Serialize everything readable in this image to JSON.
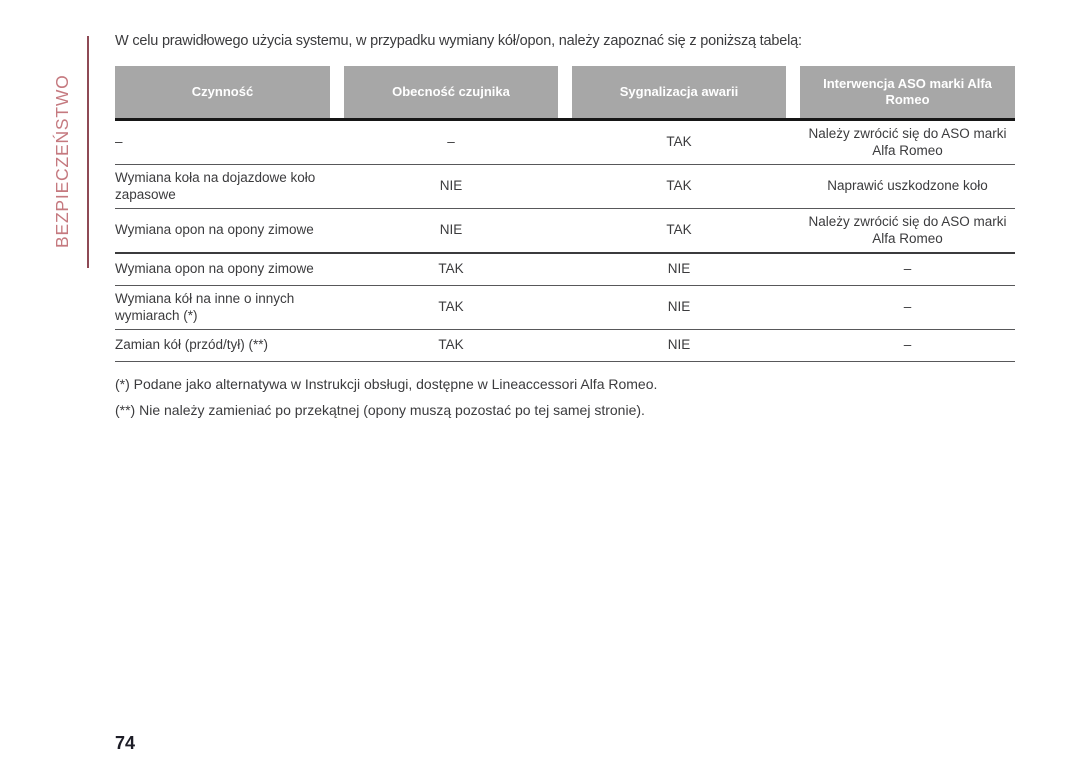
{
  "sidebar": {
    "chapter_label": "BEZPIECZEŃSTWO"
  },
  "intro_text": "W celu prawidłowego użycia systemu, w przypadku wymiany kół/opon, należy zapoznać się z poniższą tabelą:",
  "table": {
    "headers": [
      "Czynność",
      "Obecność czujnika",
      "Sygnalizacja awarii",
      "Interwencja ASO marki Alfa Romeo"
    ],
    "rows": [
      [
        "–",
        "–",
        "TAK",
        "Należy zwrócić się do ASO marki Alfa Romeo"
      ],
      [
        "Wymiana koła na dojazdowe koło zapasowe",
        "NIE",
        "TAK",
        "Naprawić uszkodzone koło"
      ],
      [
        "Wymiana opon na opony zimowe",
        "NIE",
        "TAK",
        "Należy zwrócić się do ASO marki Alfa Romeo"
      ],
      [
        "Wymiana opon na opony zimowe",
        "TAK",
        "NIE",
        "–"
      ],
      [
        "Wymiana kół na inne o innych wymiarach (*)",
        "TAK",
        "NIE",
        "–"
      ],
      [
        "Zamian kół (przód/tył) (**)",
        "TAK",
        "NIE",
        "–"
      ]
    ]
  },
  "footnotes": [
    "(*) Podane jako alternatywa w Instrukcji obsługi, dostępne w Lineaccessori Alfa Romeo.",
    "(**) Nie należy zamieniać po przekątnej (opony muszą pozostać po tej samej stronie)."
  ],
  "page_number": "74",
  "colors": {
    "header_bg": "#a7a7a7",
    "header_text": "#ffffff",
    "sidebar_text": "#c5797f",
    "sidebar_rule": "#8e4a55",
    "body_text": "#3b3b3d",
    "header_underline": "#161616"
  }
}
